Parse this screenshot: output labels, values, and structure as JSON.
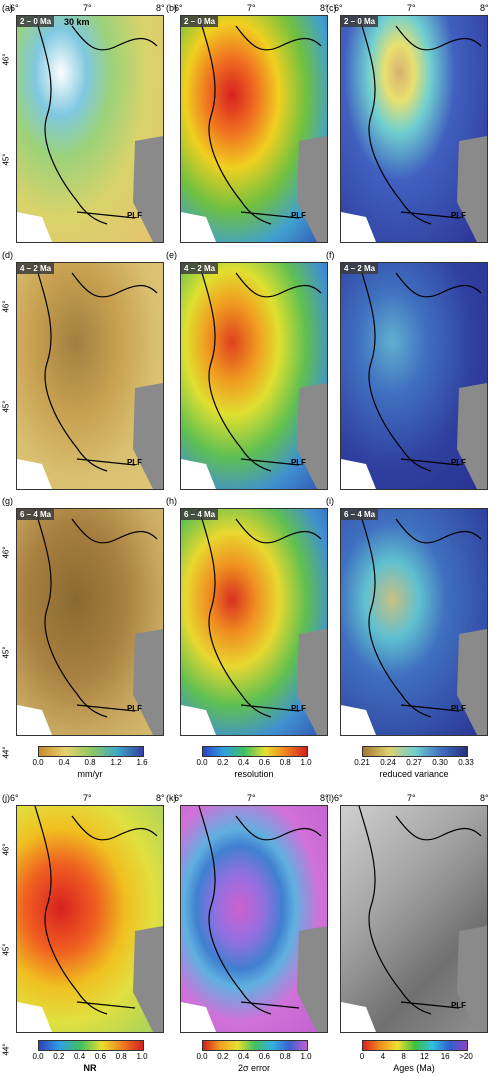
{
  "panels": [
    {
      "label": "(a)",
      "period": "2 – 0 Ma",
      "lon": [
        "6°",
        "7°",
        "8°"
      ],
      "lat": [
        "46°",
        "45°"
      ],
      "scale": "30 km",
      "fault": "PLF"
    },
    {
      "label": "(b)",
      "period": "2 – 0 Ma",
      "lon": [
        "6°",
        "7°",
        "8°"
      ],
      "fault": "PLF"
    },
    {
      "label": "(c)",
      "period": "2 – 0 Ma",
      "lon": [
        "6°",
        "7°",
        "8°"
      ],
      "fault": "PLF"
    },
    {
      "label": "(d)",
      "period": "4 – 2 Ma",
      "lat": [
        "46°",
        "45°"
      ],
      "fault": "PLF"
    },
    {
      "label": "(e)",
      "period": "4 – 2 Ma",
      "fault": "PLF"
    },
    {
      "label": "(f)",
      "period": "4 – 2 Ma",
      "fault": "PLF"
    },
    {
      "label": "(g)",
      "period": "6 – 4 Ma",
      "lat": [
        "46°",
        "45°",
        "44°"
      ],
      "fault": "PLF"
    },
    {
      "label": "(h)",
      "period": "6 – 4 Ma",
      "fault": "PLF"
    },
    {
      "label": "(i)",
      "period": "6 – 4 Ma",
      "fault": "PLF"
    },
    {
      "label": "(j)",
      "lon": [
        "6°",
        "7°",
        "8°"
      ],
      "lat": [
        "46°",
        "45°",
        "44°"
      ]
    },
    {
      "label": "(k)",
      "lon": [
        "6°",
        "7°",
        "8°"
      ]
    },
    {
      "label": "(l)",
      "lon": [
        "6°",
        "7°",
        "8°"
      ],
      "fault": "PLF"
    }
  ],
  "colorbars": [
    {
      "ticks": [
        "0.0",
        "0.4",
        "0.8",
        "1.2",
        "1.6"
      ],
      "title": "mm/yr"
    },
    {
      "ticks": [
        "0.0",
        "0.2",
        "0.4",
        "0.6",
        "0.8",
        "1.0"
      ],
      "title": "resolution"
    },
    {
      "ticks": [
        "0.21",
        "0.24",
        "0.27",
        "0.30",
        "0.33"
      ],
      "title": "reduced variance"
    },
    {
      "ticks": [
        "0.0",
        "0.2",
        "0.4",
        "0.6",
        "0.8",
        "1.0"
      ],
      "title": "NR"
    },
    {
      "ticks": [
        "0.0",
        "0.2",
        "0.4",
        "0.6",
        "0.8",
        "1.0"
      ],
      "title": "2σ error"
    },
    {
      "ticks": [
        "0",
        "4",
        "8",
        "12",
        "16",
        ">20"
      ],
      "title": "Ages (Ma)"
    }
  ]
}
